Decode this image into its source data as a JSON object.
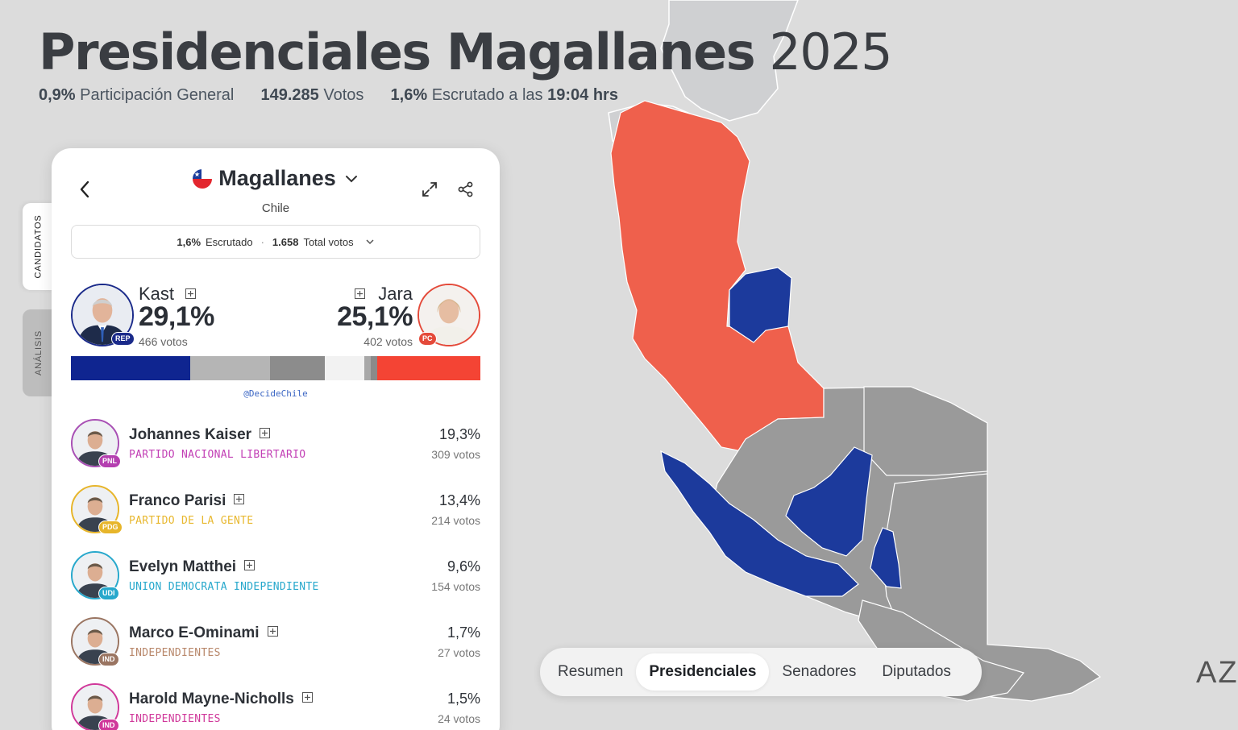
{
  "header": {
    "title_main": "Presidenciales Magallanes",
    "title_year": "2025",
    "participation_value": "0,9%",
    "participation_label": "Participación General",
    "votes_value": "149.285",
    "votes_label": "Votos",
    "counted_value": "1,6%",
    "counted_label": "Escrutado a las",
    "counted_time": "19:04 hrs"
  },
  "side_tabs": {
    "candidatos": "CANDIDATOS",
    "analisis": "ANÁLISIS"
  },
  "panel": {
    "region": "Magallanes",
    "country": "Chile",
    "summary": {
      "counted_value": "1,6%",
      "counted_label": "Escrutado",
      "separator": "·",
      "total_value": "1.658",
      "total_label": "Total votos"
    },
    "leader_left": {
      "name": "Kast",
      "pct": "29,1%",
      "votes": "466 votos",
      "badge": "REP"
    },
    "leader_right": {
      "name": "Jara",
      "pct": "25,1%",
      "votes": "402 votos",
      "badge": "PC"
    },
    "vote_bar": [
      {
        "share": 29.1,
        "color": "#0f2590"
      },
      {
        "share": 19.3,
        "color": "#b5b5b5"
      },
      {
        "share": 13.4,
        "color": "#8c8c8c"
      },
      {
        "share": 9.6,
        "color": "#f2f2f2"
      },
      {
        "share": 1.7,
        "color": "#a8a8a8"
      },
      {
        "share": 1.5,
        "color": "#8a8a8a"
      },
      {
        "share": 25.1,
        "color": "#f44434"
      }
    ],
    "credit": "@DecideChile",
    "candidates": [
      {
        "name": "Johannes Kaiser",
        "party": "PARTIDO NACIONAL LIBERTARIO",
        "party_color": "#c23fb5",
        "pct": "19,3%",
        "votes": "309 votos",
        "badge": "PNL",
        "badge_color": "#b43fb0",
        "ring": "#a84fb4"
      },
      {
        "name": "Franco Parisi",
        "party": "PARTIDO DE LA GENTE",
        "party_color": "#e8b830",
        "pct": "13,4%",
        "votes": "214 votos",
        "badge": "PDG",
        "badge_color": "#e7b52a",
        "ring": "#e7b52a"
      },
      {
        "name": "Evelyn Matthei",
        "party": "UNION DEMOCRATA INDEPENDIENTE",
        "party_color": "#27a8cc",
        "pct": "9,6%",
        "votes": "154 votos",
        "badge": "UDI",
        "badge_color": "#27a8cc",
        "ring": "#27a8cc"
      },
      {
        "name": "Marco E-Ominami",
        "party": "INDEPENDIENTES",
        "party_color": "#b8876a",
        "pct": "1,7%",
        "votes": "27 votos",
        "badge": "IND",
        "badge_color": "#9a7562",
        "ring": "#9a7562"
      },
      {
        "name": "Harold Mayne-Nicholls",
        "party": "INDEPENDIENTES",
        "party_color": "#d0389a",
        "pct": "1,5%",
        "votes": "24 votos",
        "badge": "IND",
        "badge_color": "#d0389a",
        "ring": "#d0389a"
      }
    ]
  },
  "bottom_nav": [
    {
      "label": "Resumen",
      "active": false
    },
    {
      "label": "Presidenciales",
      "active": true
    },
    {
      "label": "Senadores",
      "active": false
    },
    {
      "label": "Diputados",
      "active": false
    }
  ],
  "corner_text": "AZ",
  "colors": {
    "kast_blue": "#1c3a9c",
    "jara_red": "#f0604e",
    "other_gray": "#999999",
    "background": "#dcdcdc"
  }
}
